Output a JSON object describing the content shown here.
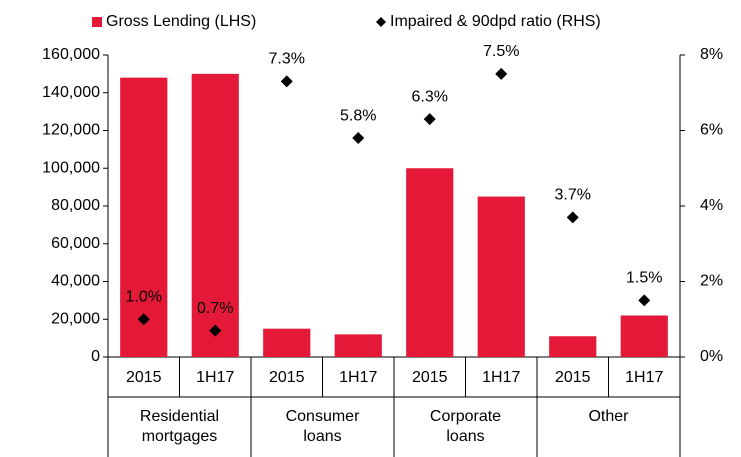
{
  "chart_data": {
    "type": "bar",
    "categories": [
      "2015",
      "1H17",
      "2015",
      "1H17",
      "2015",
      "1H17",
      "2015",
      "1H17"
    ],
    "groups": [
      "Residential mortgages",
      "Consumer loans",
      "Corporate loans",
      "Other"
    ],
    "series": [
      {
        "name": "Gross Lending (LHS)",
        "color": "#e31937",
        "values": [
          148000,
          150000,
          15000,
          12000,
          100000,
          85000,
          11000,
          22000
        ]
      },
      {
        "name": "Impaired & 90dpd ratio (RHS)",
        "color": "#000000",
        "axis": "y2",
        "values": [
          1.0,
          0.7,
          7.3,
          5.8,
          6.3,
          7.5,
          3.7,
          1.5
        ],
        "value_labels": [
          "1.0%",
          "0.7%",
          "7.3%",
          "5.8%",
          "6.3%",
          "7.5%",
          "3.7%",
          "1.5%"
        ]
      }
    ],
    "ylim": [
      0,
      160000
    ],
    "yticks": [
      0,
      {
        "value": 20000,
        "label": "20,000"
      },
      {
        "value": 40000,
        "label": "40,000"
      },
      {
        "value": 60000,
        "label": "60,000"
      },
      {
        "value": 80000,
        "label": "80,000"
      },
      {
        "value": 100000,
        "label": "100,000"
      },
      {
        "value": 120000,
        "label": "120,000"
      },
      {
        "value": 140000,
        "label": "140,000"
      },
      {
        "value": 160000,
        "label": "160,000"
      }
    ],
    "y2lim": [
      0,
      8
    ],
    "y2ticks": [
      {
        "value": 0,
        "label": "0%"
      },
      {
        "value": 2,
        "label": "2%"
      },
      {
        "value": 4,
        "label": "4%"
      },
      {
        "value": 6,
        "label": "6%"
      },
      {
        "value": 8,
        "label": "8%"
      }
    ],
    "legend": "top"
  }
}
